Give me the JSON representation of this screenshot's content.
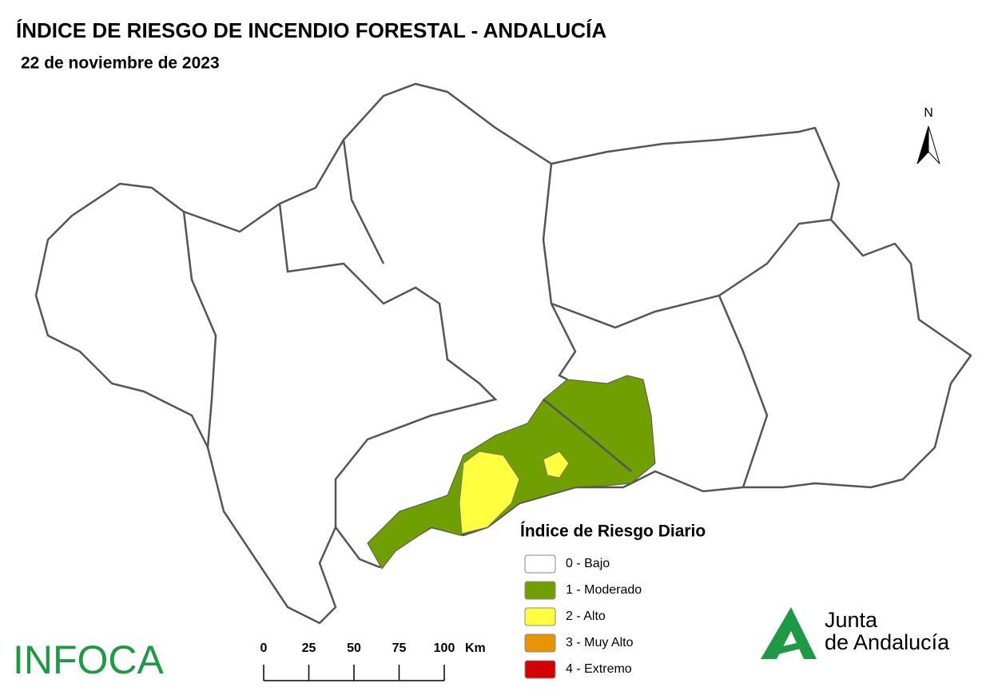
{
  "header": {
    "title": "ÍNDICE DE RIESGO DE INCENDIO FORESTAL - ANDALUCÍA",
    "subtitle": "22 de noviembre de 2023"
  },
  "north": "N",
  "legend": {
    "title": "Índice de Riesgo Diario",
    "items": [
      {
        "label": "0 - Bajo",
        "color": "#ffffff"
      },
      {
        "label": "1 - Moderado",
        "color": "#6f9f00"
      },
      {
        "label": "2 - Alto",
        "color": "#ffff40"
      },
      {
        "label": "3 - Muy Alto",
        "color": "#e69500"
      },
      {
        "label": "4 - Extremo",
        "color": "#d20000"
      }
    ]
  },
  "scale": {
    "labels": [
      0,
      25,
      50,
      75,
      100
    ],
    "unit": "Km"
  },
  "logos": {
    "infoca": "INFOCA",
    "junta_line1": "Junta",
    "junta_line2": "de Andalucía"
  }
}
